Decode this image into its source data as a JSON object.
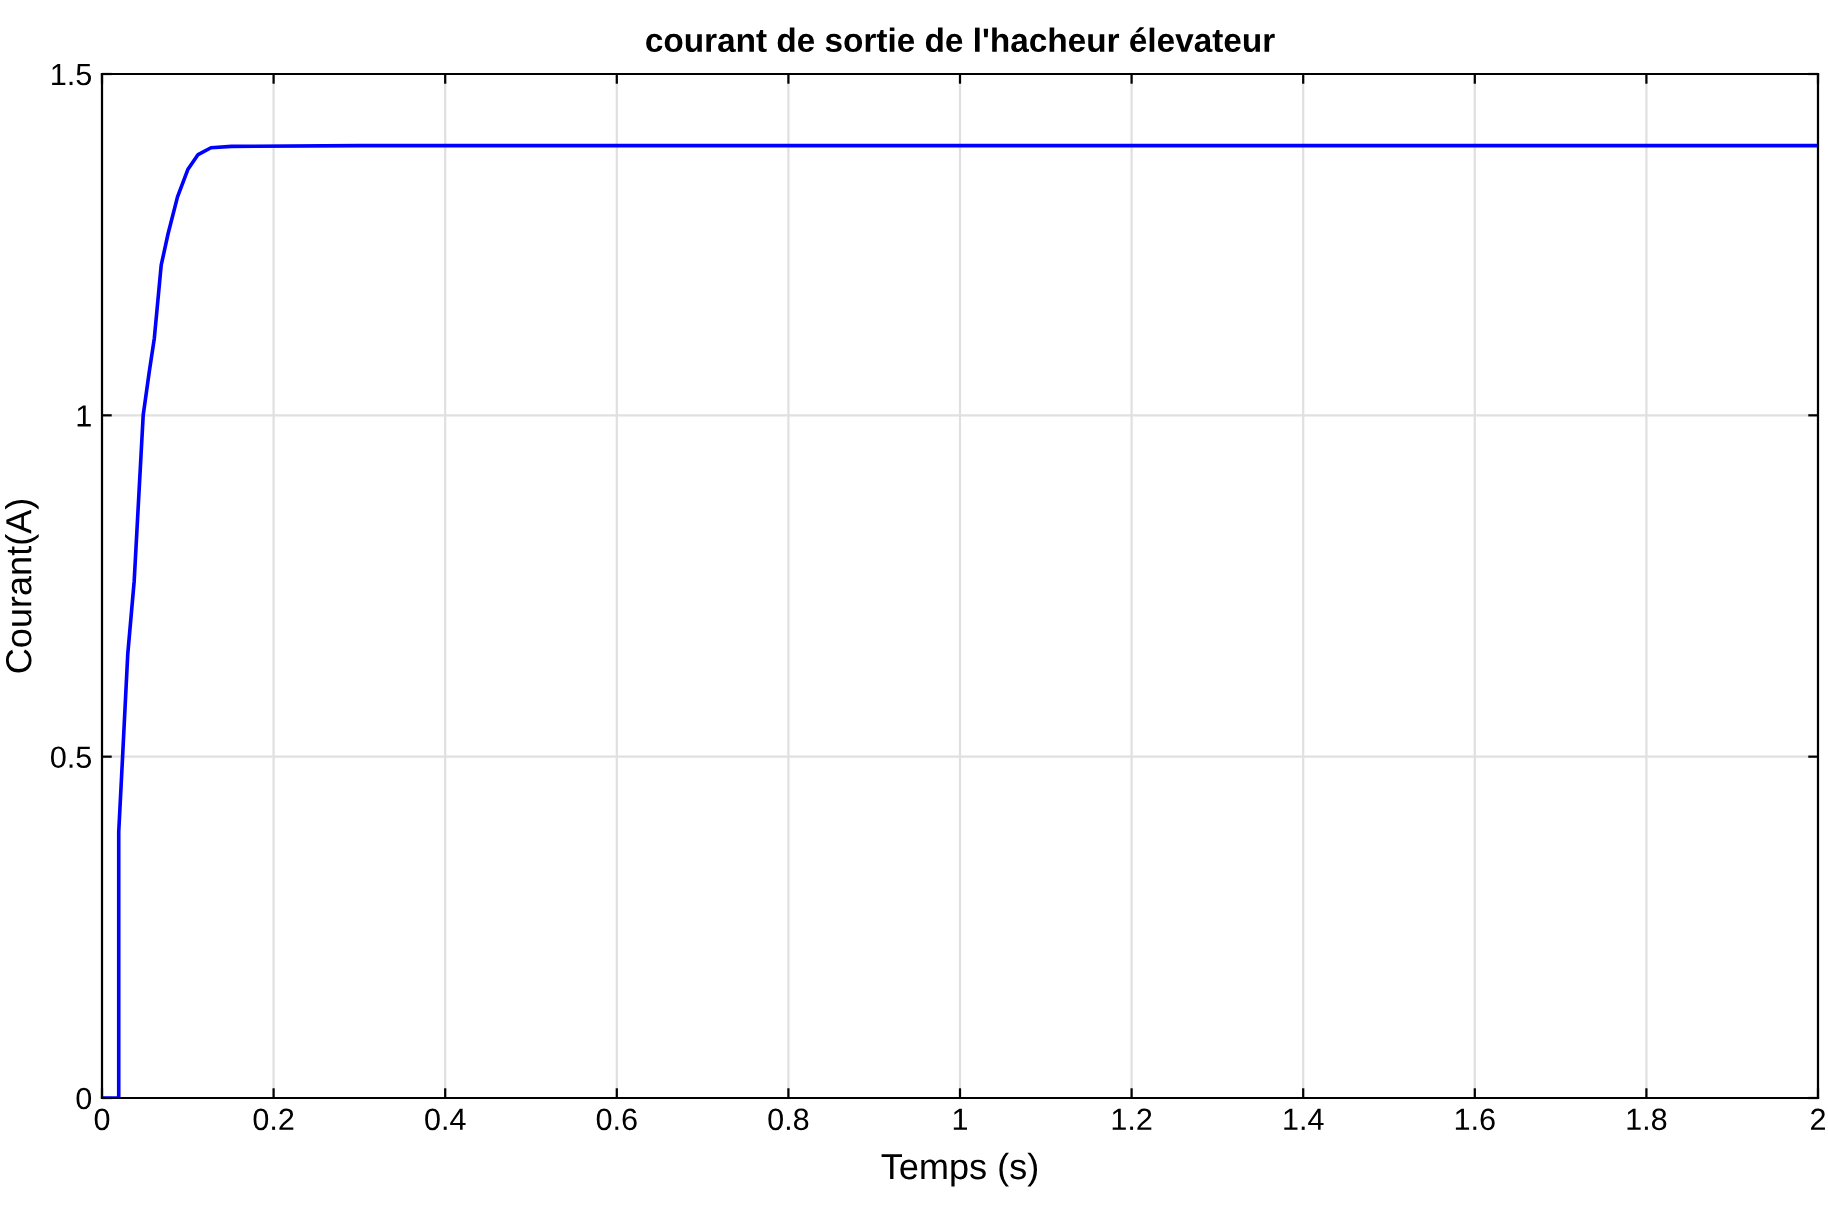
{
  "chart_data": {
    "type": "line",
    "title": "courant de sortie de l'hacheur élevateur",
    "xlabel": "Temps (s)",
    "ylabel": "Courant(A)",
    "series": [
      {
        "color": "#0000ff",
        "x": [
          0,
          0.0195,
          0.0195,
          0.024,
          0.03,
          0.0375,
          0.048,
          0.055,
          0.061,
          0.069,
          0.077,
          0.088,
          0.1,
          0.112,
          0.127,
          0.151,
          0.3,
          0.5,
          0.8,
          1.0,
          1.3,
          1.6,
          1.8,
          2.0
        ],
        "values": [
          0,
          0,
          0.39,
          0.5,
          0.65,
          0.757,
          1.0,
          1.063,
          1.113,
          1.22,
          1.266,
          1.32,
          1.36,
          1.382,
          1.392,
          1.394,
          1.395,
          1.395,
          1.395,
          1.395,
          1.395,
          1.395,
          1.395,
          1.395
        ]
      }
    ],
    "xlim": [
      0,
      2
    ],
    "ylim": [
      0,
      1.5
    ],
    "xticks": [
      0,
      0.2,
      0.4,
      0.6,
      0.8,
      1,
      1.2,
      1.4,
      1.6,
      1.8,
      2
    ],
    "yticks": [
      0,
      0.5,
      1,
      1.5
    ],
    "grid": true,
    "marker": "none",
    "line_style": "solid"
  }
}
